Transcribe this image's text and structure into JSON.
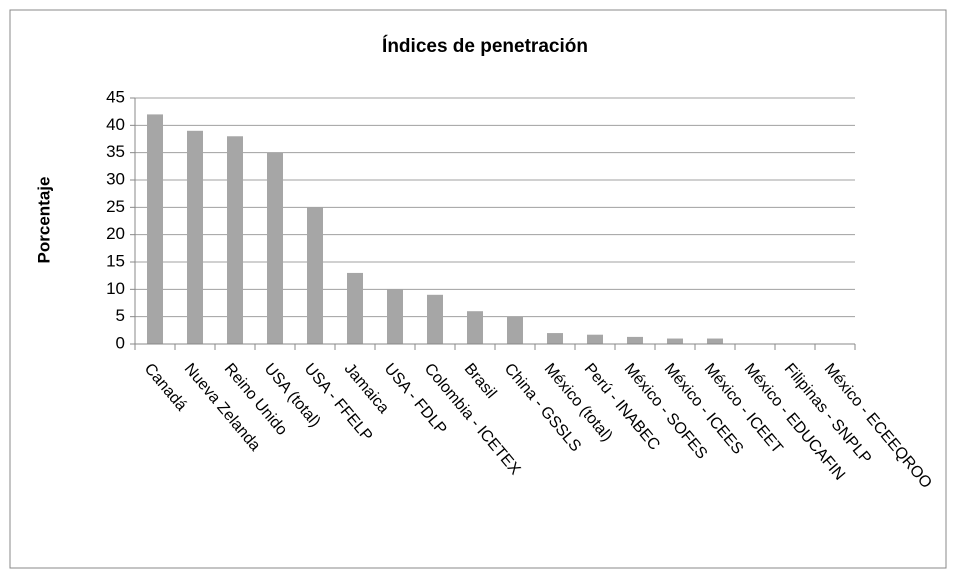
{
  "chart_data": {
    "type": "bar",
    "title": "Índices de penetración",
    "y_label": "Porcentaje",
    "categories": [
      "Canadá",
      "Nueva Zelanda",
      "Reino Unido",
      "USA (total)",
      "USA - FFELP",
      "Jamaica",
      "USA - FDLP",
      "Colombia - ICETEX",
      "Brasil",
      "China - GSSLS",
      "México (total)",
      "Perú - INABEC",
      "México - SOFES",
      "México - ICEES",
      "México - ICEET",
      "México - EDUCAFIN",
      "Filipinas - SNPLP",
      "México - ECEEQROO"
    ],
    "values": [
      42,
      39,
      38,
      35,
      25,
      13,
      10,
      9,
      6,
      5,
      2,
      1.7,
      1.3,
      1,
      1,
      0,
      0,
      0
    ],
    "color": "#a6a6a6",
    "ylim": [
      0,
      45
    ],
    "yticks": [
      0,
      5,
      10,
      15,
      20,
      25,
      30,
      35,
      40,
      45
    ],
    "grid": true
  }
}
